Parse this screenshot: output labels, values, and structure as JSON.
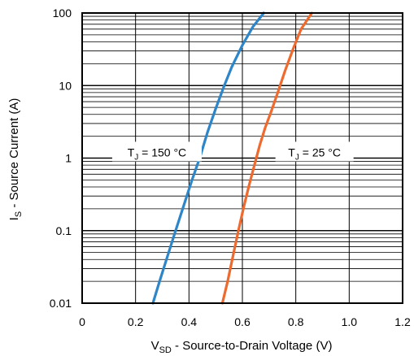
{
  "chart_data": {
    "type": "line",
    "xlabel": {
      "main": "V",
      "sub": "SD",
      "rest": " - Source-to-Drain Voltage (V)"
    },
    "ylabel": {
      "main": "I",
      "sub": "S",
      "rest": " - Source Current (A)"
    },
    "xlim": [
      0,
      1.2
    ],
    "ylim": [
      0.01,
      100
    ],
    "yscale": "log",
    "grid": true,
    "x_ticks": [
      "0",
      "0.2",
      "0.4",
      "0.6",
      "0.8",
      "1.0",
      "1.2"
    ],
    "y_ticks": [
      "0.01",
      "0.1",
      "1",
      "10",
      "100"
    ],
    "series": [
      {
        "color": "#2e86c8",
        "x": [
          0.265,
          0.29,
          0.32,
          0.35,
          0.38,
          0.41,
          0.44,
          0.47,
          0.5,
          0.53,
          0.56,
          0.6,
          0.64,
          0.68
        ],
        "y": [
          0.01,
          0.02,
          0.045,
          0.1,
          0.22,
          0.48,
          1.0,
          2.3,
          4.8,
          9.5,
          18,
          36,
          65,
          100
        ]
      },
      {
        "color": "#ee6a2e",
        "x": [
          0.525,
          0.545,
          0.565,
          0.585,
          0.605,
          0.625,
          0.645,
          0.665,
          0.685,
          0.71,
          0.735,
          0.76,
          0.79,
          0.82,
          0.86
        ],
        "y": [
          0.01,
          0.02,
          0.045,
          0.1,
          0.21,
          0.42,
          0.8,
          1.5,
          2.6,
          4.6,
          8.5,
          16,
          32,
          60,
          100
        ]
      }
    ],
    "annotations": [
      {
        "main": "T",
        "sub": "J",
        "rest": " = 150 °C",
        "x": 0.28,
        "y": 1.2
      },
      {
        "main": "T",
        "sub": "J",
        "rest": " = 25 °C",
        "x": 0.87,
        "y": 1.2
      }
    ]
  }
}
